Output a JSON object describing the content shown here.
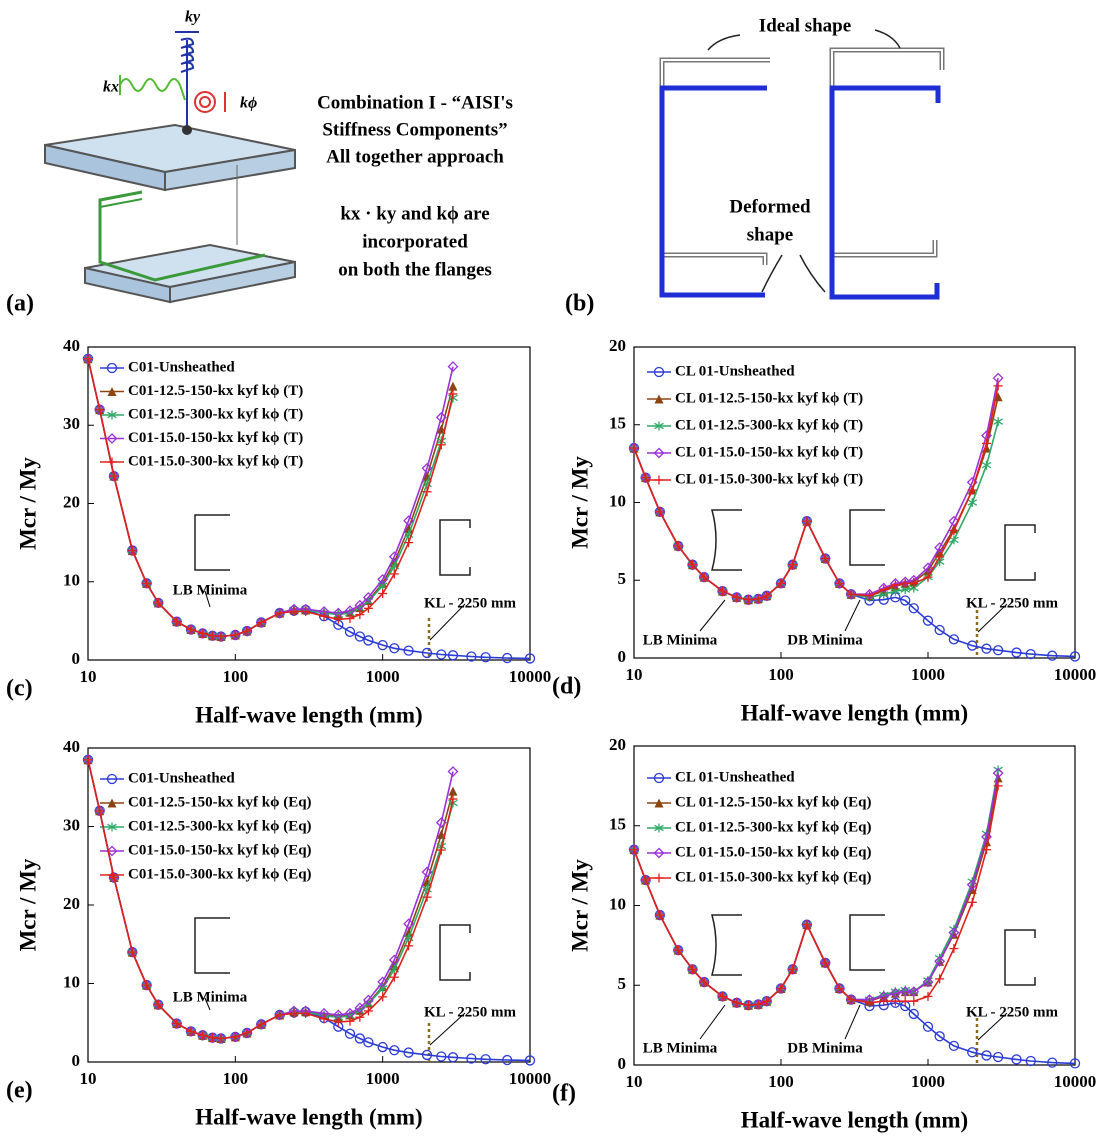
{
  "panel_a": {
    "label": "(a)",
    "spring_labels": [
      "ky",
      "kx",
      "kϕ"
    ],
    "caption": [
      "Combination I - “AISI's",
      "Stiffness Components”",
      "All together approach",
      "kx · ky and kϕ are",
      "incorporated",
      "on both the flanges"
    ]
  },
  "panel_b": {
    "label": "(b)",
    "ideal": "Ideal shape",
    "deformed": [
      "Deformed",
      "shape"
    ]
  },
  "chart_data": [
    {
      "type": "line",
      "panel": "(c)",
      "xlabel": "Half-wave length (mm)",
      "ylabel": "Mcr / My",
      "xscale": "log",
      "xlim": [
        10,
        10000
      ],
      "ylim": [
        0,
        40
      ],
      "xticks": [
        10,
        100,
        1000,
        10000
      ],
      "yticks": [
        0,
        10,
        20,
        30,
        40
      ],
      "annotations": [
        "LB Minima",
        "KL - 2250 mm"
      ],
      "x": [
        10,
        12,
        15,
        20,
        25,
        30,
        40,
        50,
        60,
        70,
        80,
        100,
        120,
        150,
        200,
        250,
        300,
        400,
        500,
        600,
        700,
        800,
        1000,
        1200,
        1500,
        2000,
        2500,
        3000,
        4000,
        5000,
        7000,
        10000
      ],
      "series": [
        {
          "name": "C01-Unsheathed",
          "color": "#2b3bd6",
          "marker": "circle",
          "values": [
            38.5,
            32,
            23.5,
            14,
            9.8,
            7.3,
            4.9,
            3.9,
            3.4,
            3.1,
            3.0,
            3.2,
            3.7,
            4.8,
            6.0,
            6.3,
            6.4,
            5.6,
            4.5,
            3.6,
            3.0,
            2.5,
            1.9,
            1.5,
            1.2,
            0.9,
            0.7,
            0.6,
            0.45,
            0.35,
            0.25,
            0.2
          ]
        },
        {
          "name": "C01-12.5-150-kx kyf kϕ (T)",
          "color": "#8b4513",
          "marker": "triangle",
          "values": [
            38.5,
            32,
            23.5,
            14,
            9.8,
            7.3,
            4.9,
            3.9,
            3.4,
            3.1,
            3.0,
            3.2,
            3.7,
            4.8,
            6.0,
            6.4,
            6.4,
            6.1,
            5.9,
            6.1,
            6.7,
            7.6,
            9.8,
            12.5,
            16.8,
            23.5,
            29.5,
            35,
            null,
            null,
            null,
            null
          ]
        },
        {
          "name": "C01-12.5-300-kx kyf kϕ (T)",
          "color": "#2eaa66",
          "marker": "asterisk",
          "values": [
            38.5,
            32,
            23.5,
            14,
            9.8,
            7.3,
            4.9,
            3.9,
            3.4,
            3.1,
            3.0,
            3.2,
            3.7,
            4.8,
            6.0,
            6.4,
            6.4,
            6.0,
            5.8,
            6.0,
            6.6,
            7.5,
            9.5,
            12,
            16,
            22.5,
            28,
            33.5,
            null,
            null,
            null,
            null
          ]
        },
        {
          "name": "C01-15.0-150-kx kyf kϕ (T)",
          "color": "#9b30d9",
          "marker": "diamond",
          "values": [
            38.5,
            32,
            23.5,
            14,
            9.8,
            7.3,
            4.9,
            3.9,
            3.4,
            3.1,
            3.0,
            3.2,
            3.7,
            4.8,
            6.0,
            6.5,
            6.5,
            6.2,
            6.0,
            6.3,
            7.0,
            8.0,
            10.3,
            13.2,
            17.8,
            24.5,
            31,
            37.5,
            null,
            null,
            null,
            null
          ]
        },
        {
          "name": "C01-15.0-300-kx kyf kϕ (T)",
          "color": "#e0201b",
          "marker": "plus",
          "values": [
            38.5,
            32,
            23.5,
            14,
            9.8,
            7.3,
            4.9,
            3.9,
            3.4,
            3.1,
            3.0,
            3.2,
            3.7,
            4.8,
            6.0,
            6.2,
            6.2,
            5.6,
            5.2,
            5.3,
            5.8,
            6.6,
            8.5,
            11,
            15,
            21.5,
            27.5,
            34,
            null,
            null,
            null,
            null
          ]
        }
      ]
    },
    {
      "type": "line",
      "panel": "(d)",
      "xlabel": "Half-wave length (mm)",
      "ylabel": "Mcr / My",
      "xscale": "log",
      "xlim": [
        10,
        10000
      ],
      "ylim": [
        0,
        20
      ],
      "xticks": [
        10,
        100,
        1000,
        10000
      ],
      "yticks": [
        0,
        5,
        10,
        15,
        20
      ],
      "annotations": [
        "LB Minima",
        "DB Minima",
        "KL - 2250 mm"
      ],
      "x": [
        10,
        12,
        15,
        20,
        25,
        30,
        40,
        50,
        60,
        70,
        80,
        100,
        120,
        150,
        200,
        250,
        300,
        400,
        500,
        600,
        700,
        800,
        1000,
        1200,
        1500,
        2000,
        2500,
        3000,
        4000,
        5000,
        7000,
        10000
      ],
      "series": [
        {
          "name": "CL 01-Unsheathed",
          "color": "#2b3bd6",
          "marker": "circle",
          "values": [
            13.5,
            11.6,
            9.4,
            7.2,
            6.0,
            5.2,
            4.3,
            3.9,
            3.75,
            3.8,
            4.0,
            4.8,
            6.0,
            8.8,
            6.4,
            4.8,
            4.1,
            3.7,
            3.75,
            3.9,
            3.7,
            3.2,
            2.4,
            1.8,
            1.2,
            0.8,
            0.6,
            0.5,
            0.35,
            0.25,
            0.15,
            0.1
          ]
        },
        {
          "name": "CL 01-12.5-150-kx kyf kϕ (T)",
          "color": "#8b4513",
          "marker": "triangle",
          "values": [
            13.5,
            11.6,
            9.4,
            7.2,
            6.0,
            5.2,
            4.3,
            3.9,
            3.75,
            3.8,
            4.0,
            4.8,
            6.0,
            8.8,
            6.4,
            4.8,
            4.1,
            4.0,
            4.3,
            4.6,
            4.8,
            4.9,
            5.6,
            6.8,
            8.3,
            10.8,
            13.5,
            16.8,
            null,
            null,
            null,
            null
          ]
        },
        {
          "name": "CL 01-12.5-300-kx kyf kϕ (T)",
          "color": "#2eaa66",
          "marker": "asterisk",
          "values": [
            13.5,
            11.6,
            9.4,
            7.2,
            6.0,
            5.2,
            4.3,
            3.9,
            3.75,
            3.8,
            4.0,
            4.8,
            6.0,
            8.8,
            6.4,
            4.8,
            4.1,
            3.9,
            4.1,
            4.3,
            4.4,
            4.5,
            5.2,
            6.2,
            7.6,
            10,
            12.4,
            15.2,
            null,
            null,
            null,
            null
          ]
        },
        {
          "name": "CL 01-15.0-150-kx kyf kϕ (T)",
          "color": "#9b30d9",
          "marker": "diamond",
          "values": [
            13.5,
            11.6,
            9.4,
            7.2,
            6.0,
            5.2,
            4.3,
            3.9,
            3.75,
            3.8,
            4.0,
            4.8,
            6.0,
            8.8,
            6.4,
            4.8,
            4.1,
            4.1,
            4.5,
            4.8,
            4.9,
            5.0,
            5.8,
            7.1,
            8.8,
            11.3,
            14.3,
            18,
            null,
            null,
            null,
            null
          ]
        },
        {
          "name": "CL 01-15.0-300-kx kyf kϕ (T)",
          "color": "#e0201b",
          "marker": "plus",
          "values": [
            13.5,
            11.6,
            9.4,
            7.2,
            6.0,
            5.2,
            4.3,
            3.9,
            3.75,
            3.8,
            4.0,
            4.8,
            6.0,
            8.8,
            6.4,
            4.8,
            4.1,
            4.0,
            4.4,
            4.7,
            4.8,
            4.8,
            5.2,
            6.5,
            8.2,
            10.8,
            13.8,
            17.5,
            null,
            null,
            null,
            null
          ]
        }
      ]
    },
    {
      "type": "line",
      "panel": "(e)",
      "xlabel": "Half-wave length (mm)",
      "ylabel": "Mcr / My",
      "xscale": "log",
      "xlim": [
        10,
        10000
      ],
      "ylim": [
        0,
        40
      ],
      "xticks": [
        10,
        100,
        1000,
        10000
      ],
      "yticks": [
        0,
        10,
        20,
        30,
        40
      ],
      "annotations": [
        "LB Minima",
        "KL - 2250 mm"
      ],
      "x": [
        10,
        12,
        15,
        20,
        25,
        30,
        40,
        50,
        60,
        70,
        80,
        100,
        120,
        150,
        200,
        250,
        300,
        400,
        500,
        600,
        700,
        800,
        1000,
        1200,
        1500,
        2000,
        2500,
        3000,
        4000,
        5000,
        7000,
        10000
      ],
      "series": [
        {
          "name": "C01-Unsheathed",
          "color": "#2b3bd6",
          "marker": "circle",
          "values": [
            38.5,
            32,
            23.5,
            14,
            9.8,
            7.3,
            4.9,
            3.9,
            3.4,
            3.1,
            3.0,
            3.2,
            3.7,
            4.8,
            6.0,
            6.3,
            6.4,
            5.6,
            4.5,
            3.6,
            3.0,
            2.5,
            1.9,
            1.5,
            1.2,
            0.9,
            0.7,
            0.6,
            0.45,
            0.35,
            0.25,
            0.2
          ]
        },
        {
          "name": "C01-12.5-150-kx kyf kϕ (Eq)",
          "color": "#8b4513",
          "marker": "triangle",
          "values": [
            38.5,
            32,
            23.5,
            14,
            9.8,
            7.3,
            4.9,
            3.9,
            3.4,
            3.1,
            3.0,
            3.2,
            3.7,
            4.8,
            6.0,
            6.4,
            6.4,
            6.0,
            5.8,
            6.0,
            6.6,
            7.5,
            9.6,
            12.3,
            16.5,
            23,
            29,
            34.5,
            null,
            null,
            null,
            null
          ]
        },
        {
          "name": "C01-12.5-300-kx kyf kϕ (Eq)",
          "color": "#2eaa66",
          "marker": "asterisk",
          "values": [
            38.5,
            32,
            23.5,
            14,
            9.8,
            7.3,
            4.9,
            3.9,
            3.4,
            3.1,
            3.0,
            3.2,
            3.7,
            4.8,
            6.0,
            6.4,
            6.4,
            5.9,
            5.7,
            5.9,
            6.5,
            7.4,
            9.4,
            11.8,
            15.8,
            22,
            27.5,
            33,
            null,
            null,
            null,
            null
          ]
        },
        {
          "name": "C01-15.0-150-kx kyf kϕ (Eq)",
          "color": "#9b30d9",
          "marker": "diamond",
          "values": [
            38.5,
            32,
            23.5,
            14,
            9.8,
            7.3,
            4.9,
            3.9,
            3.4,
            3.1,
            3.0,
            3.2,
            3.7,
            4.8,
            6.0,
            6.5,
            6.5,
            6.2,
            6.0,
            6.2,
            6.9,
            7.9,
            10.2,
            13,
            17.6,
            24.2,
            30.5,
            37,
            null,
            null,
            null,
            null
          ]
        },
        {
          "name": "C01-15.0-300-kx kyf kϕ (Eq)",
          "color": "#e0201b",
          "marker": "plus",
          "values": [
            38.5,
            32,
            23.5,
            14,
            9.8,
            7.3,
            4.9,
            3.9,
            3.4,
            3.1,
            3.0,
            3.2,
            3.7,
            4.8,
            6.0,
            6.2,
            6.2,
            5.5,
            5.1,
            5.2,
            5.7,
            6.5,
            8.3,
            10.8,
            14.8,
            21,
            27,
            33.5,
            null,
            null,
            null,
            null
          ]
        }
      ]
    },
    {
      "type": "line",
      "panel": "(f)",
      "xlabel": "Half-wave length (mm)",
      "ylabel": "Mcr / My",
      "xscale": "log",
      "xlim": [
        10,
        10000
      ],
      "ylim": [
        0,
        20
      ],
      "xticks": [
        10,
        100,
        1000,
        10000
      ],
      "yticks": [
        0,
        5,
        10,
        15,
        20
      ],
      "annotations": [
        "LB Minima",
        "DB Minima",
        "KL - 2250 mm"
      ],
      "x": [
        10,
        12,
        15,
        20,
        25,
        30,
        40,
        50,
        60,
        70,
        80,
        100,
        120,
        150,
        200,
        250,
        300,
        400,
        500,
        600,
        700,
        800,
        1000,
        1200,
        1500,
        2000,
        2500,
        3000,
        4000,
        5000,
        7000,
        10000
      ],
      "series": [
        {
          "name": "CL 01-Unsheathed",
          "color": "#2b3bd6",
          "marker": "circle",
          "values": [
            13.5,
            11.6,
            9.4,
            7.2,
            6.0,
            5.2,
            4.3,
            3.9,
            3.75,
            3.8,
            4.0,
            4.8,
            6.0,
            8.8,
            6.4,
            4.8,
            4.1,
            3.7,
            3.75,
            3.9,
            3.7,
            3.2,
            2.4,
            1.8,
            1.2,
            0.8,
            0.6,
            0.5,
            0.35,
            0.25,
            0.15,
            0.1
          ]
        },
        {
          "name": "CL 01-12.5-150-kx kyf kϕ (Eq)",
          "color": "#8b4513",
          "marker": "triangle",
          "values": [
            13.5,
            11.6,
            9.4,
            7.2,
            6.0,
            5.2,
            4.3,
            3.9,
            3.75,
            3.8,
            4.0,
            4.8,
            6.0,
            8.8,
            6.4,
            4.8,
            4.1,
            4.0,
            4.3,
            4.5,
            4.6,
            4.6,
            5.2,
            6.5,
            8.2,
            11,
            14,
            18,
            null,
            null,
            null,
            null
          ]
        },
        {
          "name": "CL 01-12.5-300-kx kyf kϕ (Eq)",
          "color": "#2eaa66",
          "marker": "asterisk",
          "values": [
            13.5,
            11.6,
            9.4,
            7.2,
            6.0,
            5.2,
            4.3,
            3.9,
            3.75,
            3.8,
            4.0,
            4.8,
            6.0,
            8.8,
            6.4,
            4.8,
            4.1,
            4.1,
            4.4,
            4.6,
            4.7,
            4.6,
            5.3,
            6.7,
            8.5,
            11.5,
            14.5,
            18.5,
            null,
            null,
            null,
            null
          ]
        },
        {
          "name": "CL 01-15.0-150-kx kyf kϕ (Eq)",
          "color": "#9b30d9",
          "marker": "diamond",
          "values": [
            13.5,
            11.6,
            9.4,
            7.2,
            6.0,
            5.2,
            4.3,
            3.9,
            3.75,
            3.8,
            4.0,
            4.8,
            6.0,
            8.8,
            6.4,
            4.8,
            4.1,
            4.1,
            4.3,
            4.5,
            4.6,
            4.6,
            5.2,
            6.5,
            8.3,
            11.3,
            14.3,
            18.3,
            null,
            null,
            null,
            null
          ]
        },
        {
          "name": "CL 01-15.0-300-kx kyf kϕ (Eq)",
          "color": "#e0201b",
          "marker": "plus",
          "values": [
            13.5,
            11.6,
            9.4,
            7.2,
            6.0,
            5.2,
            4.3,
            3.9,
            3.75,
            3.8,
            4.0,
            4.8,
            6.0,
            8.8,
            6.4,
            4.8,
            4.1,
            3.9,
            4.0,
            4.0,
            4.0,
            4.0,
            4.3,
            5.4,
            7.3,
            10.2,
            13.5,
            17.5,
            null,
            null,
            null,
            null
          ]
        }
      ]
    }
  ]
}
